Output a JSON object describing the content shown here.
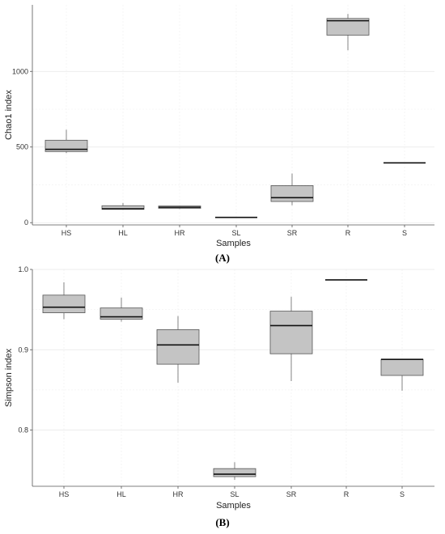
{
  "chart_data": [
    {
      "type": "boxplot",
      "panel_label": "(A)",
      "xlabel": "Samples",
      "ylabel": "Chao1 index",
      "categories": [
        "HS",
        "HL",
        "HR",
        "SL",
        "SR",
        "R",
        "S"
      ],
      "yticks": [
        0,
        500,
        1000
      ],
      "ylim": [
        -15,
        1440
      ],
      "grid": true,
      "box_color": "#c4c4c4",
      "boxes": [
        {
          "category": "HS",
          "min": 460,
          "q1": 470,
          "median": 485,
          "q3": 545,
          "max": 615
        },
        {
          "category": "HL",
          "min": 85,
          "q1": 88,
          "median": 92,
          "q3": 112,
          "max": 130
        },
        {
          "category": "HR",
          "min": 90,
          "q1": 95,
          "median": 102,
          "q3": 110,
          "max": 112
        },
        {
          "category": "SL",
          "min": 35,
          "q1": 35,
          "median": 35,
          "q3": 35,
          "max": 35
        },
        {
          "category": "SR",
          "min": 115,
          "q1": 140,
          "median": 165,
          "q3": 245,
          "max": 325
        },
        {
          "category": "R",
          "min": 1140,
          "q1": 1240,
          "median": 1335,
          "q3": 1350,
          "max": 1380
        },
        {
          "category": "S",
          "min": 395,
          "q1": 395,
          "median": 395,
          "q3": 395,
          "max": 395
        }
      ]
    },
    {
      "type": "boxplot",
      "panel_label": "(B)",
      "xlabel": "Samples",
      "ylabel": "Simpson index",
      "categories": [
        "HS",
        "HL",
        "HR",
        "SL",
        "SR",
        "R",
        "S"
      ],
      "yticks": [
        0.8,
        0.9,
        1.0
      ],
      "ytick_labels": [
        "0.8",
        "0.9",
        "1.0"
      ],
      "ylim": [
        0.73,
        1.0
      ],
      "grid": true,
      "box_color": "#c4c4c4",
      "boxes": [
        {
          "category": "HS",
          "min": 0.938,
          "q1": 0.946,
          "median": 0.953,
          "q3": 0.968,
          "max": 0.984
        },
        {
          "category": "HL",
          "min": 0.935,
          "q1": 0.938,
          "median": 0.941,
          "q3": 0.952,
          "max": 0.965
        },
        {
          "category": "HR",
          "min": 0.859,
          "q1": 0.882,
          "median": 0.906,
          "q3": 0.925,
          "max": 0.942
        },
        {
          "category": "SL",
          "min": 0.738,
          "q1": 0.742,
          "median": 0.745,
          "q3": 0.752,
          "max": 0.76
        },
        {
          "category": "SR",
          "min": 0.861,
          "q1": 0.895,
          "median": 0.93,
          "q3": 0.948,
          "max": 0.966
        },
        {
          "category": "R",
          "min": 0.987,
          "q1": 0.987,
          "median": 0.987,
          "q3": 0.987,
          "max": 0.987
        },
        {
          "category": "S",
          "min": 0.849,
          "q1": 0.868,
          "median": 0.888,
          "q3": 0.888,
          "max": 0.888
        }
      ]
    }
  ]
}
